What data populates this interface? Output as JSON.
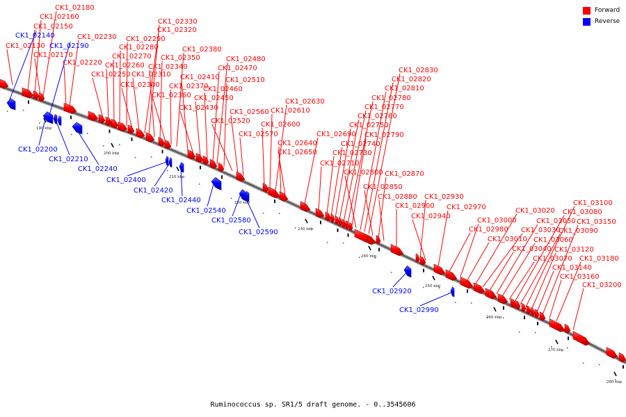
{
  "caption": "Ruminococcus sp. SR1/5 draft genome. - 0..3545606",
  "colors": {
    "forward": "#ff0000",
    "reverse": "#0000ff",
    "line_forward": "#ff0000",
    "line_reverse": "#0000ff"
  },
  "legend": {
    "forward_label": "Forward",
    "reverse_label": "Reverse"
  },
  "ticks": [
    {
      "label": "190 kbp",
      "kbp": 190
    },
    {
      "label": "200 kbp",
      "kbp": 200
    },
    {
      "label": "210 kbp",
      "kbp": 210
    },
    {
      "label": "220 kbp",
      "kbp": 220
    },
    {
      "label": "230 kbp",
      "kbp": 230
    },
    {
      "label": "240 kbp",
      "kbp": 240
    },
    {
      "label": "250 kbp",
      "kbp": 250
    },
    {
      "label": "260 kbp",
      "kbp": 260
    },
    {
      "label": "270 kbp",
      "kbp": 270
    },
    {
      "label": "280 kbp",
      "kbp": 280
    }
  ],
  "forward_genes": [
    "CK1_02130",
    "CK1_02150",
    "CK1_02160",
    "CK1_02170",
    "CK1_02180",
    "CK1_02220",
    "CK1_02230",
    "CK1_02250",
    "CK1_02260",
    "CK1_02270",
    "CK1_02280",
    "CK1_02290",
    "CK1_02300",
    "CK1_02310",
    "CK1_02320",
    "CK1_02330",
    "CK1_02340",
    "CK1_02350",
    "CK1_02360",
    "CK1_02370",
    "CK1_02380",
    "CK1_02410",
    "CK1_02430",
    "CK1_02450",
    "CK1_02460",
    "CK1_02470",
    "CK1_02480",
    "CK1_02510",
    "CK1_02520",
    "CK1_02560",
    "CK1_02570",
    "CK1_02600",
    "CK1_02610",
    "CK1_02630",
    "CK1_02640",
    "CK1_02650",
    "CK1_02690",
    "CK1_02710",
    "CK1_02730",
    "CK1_02740",
    "CK1_02750",
    "CK1_02760",
    "CK1_02770",
    "CK1_02780",
    "CK1_02790",
    "CK1_02800",
    "CK1_02810",
    "CK1_02820",
    "CK1_02830",
    "CK1_02850",
    "CK1_02870",
    "CK1_02880",
    "CK1_02900",
    "CK1_02930",
    "CK1_02940",
    "CK1_02970",
    "CK1_02980",
    "CK1_03000",
    "CK1_03010",
    "CK1_03020",
    "CK1_03030",
    "CK1_03040",
    "CK1_03050",
    "CK1_03060",
    "CK1_03070",
    "CK1_03080",
    "CK1_03090",
    "CK1_03100",
    "CK1_03120",
    "CK1_03140",
    "CK1_03150",
    "CK1_03160",
    "CK1_03180",
    "CK1_03200"
  ],
  "reverse_genes": [
    "CK1_02140",
    "CK1_02190",
    "CK1_02200",
    "CK1_02210",
    "CK1_02240",
    "CK1_02400",
    "CK1_02420",
    "CK1_02440",
    "CK1_02540",
    "CK1_02580",
    "CK1_02590",
    "CK1_02920",
    "CK1_02990"
  ]
}
